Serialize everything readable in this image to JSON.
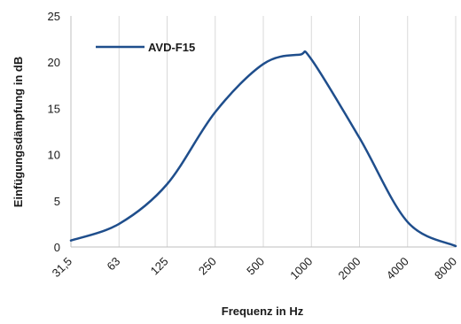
{
  "chart_data": {
    "type": "line",
    "title": "",
    "xlabel": "Frequenz in Hz",
    "ylabel": "Einfügungsdämpfung in dB",
    "categories": [
      "31,5",
      "63",
      "125",
      "250",
      "500",
      "1000",
      "2000",
      "4000",
      "8000"
    ],
    "y_ticks": [
      "0",
      "5",
      "10",
      "15",
      "20",
      "25"
    ],
    "ylim": [
      0,
      25
    ],
    "grid": "vertical",
    "legend": "top-left",
    "series": [
      {
        "name": "AVD-F15",
        "color": "#1f4e8c",
        "values": [
          0.7,
          2.5,
          6.8,
          14.6,
          19.8,
          20.3,
          11.8,
          2.7,
          0.1
        ],
        "peak": {
          "x": 0.75,
          "value": 20.8
        }
      }
    ]
  }
}
